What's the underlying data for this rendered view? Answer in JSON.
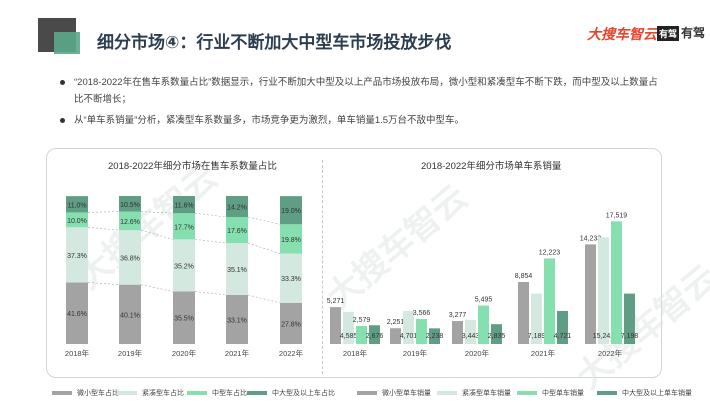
{
  "header": {
    "title": "细分市场④：行业不断加大中型车市场投放步伐",
    "logo_primary": "大搜车智云",
    "logo_secondary_box": "有驾",
    "logo_secondary_text": "有驾"
  },
  "bullets": [
    "“2018-2022年在售车系数量占比”数据显示，行业不断加大中型及以上产品市场投放布局，微小型和紧凑型车不断下跌，而中型及以上数量占比不断增长；",
    "从“单车系销量”分析，紧凑型车系数量多，市场竞争更为激烈，单车销量1.5万台不敌中型车。"
  ],
  "colors": {
    "micro": "#a3a3a3",
    "compact": "#d3e8de",
    "mid": "#86dfae",
    "large": "#5f9d84"
  },
  "chart_data": [
    {
      "type": "bar",
      "stacked": true,
      "title": "2018-2022年细分市场在售车系数量占比",
      "categories": [
        "2018年",
        "2019年",
        "2020年",
        "2021年",
        "2022年"
      ],
      "series": [
        {
          "name": "微小型车占比",
          "values": [
            41.6,
            40.1,
            35.5,
            33.1,
            27.8
          ]
        },
        {
          "name": "紧凑型车占比",
          "values": [
            37.3,
            36.8,
            35.2,
            35.1,
            33.3
          ]
        },
        {
          "name": "中型车占比",
          "values": [
            10.0,
            12.6,
            17.7,
            17.6,
            19.8
          ]
        },
        {
          "name": "中大型及以上车占比",
          "values": [
            11.0,
            10.5,
            11.6,
            14.2,
            19.0
          ]
        }
      ],
      "labels": {
        "micro": [
          "41.6%",
          "40.1%",
          "35.5%",
          "33.1%",
          "27.8%"
        ],
        "compact": [
          "37.3%",
          "36.8%",
          "35.2%",
          "35.1%",
          "33.3%"
        ],
        "mid": [
          "10.0%",
          "12.6%",
          "17.7%",
          "17.6%",
          "19.8%"
        ],
        "large": [
          "11.0%",
          "10.5%",
          "11.6%",
          "14.2%",
          "19.0%"
        ]
      },
      "ylim": [
        0,
        100
      ],
      "legend": "bottom"
    },
    {
      "type": "bar",
      "title": "2018-2022年细分市场单车系销量",
      "categories": [
        "2018年",
        "2019年",
        "2020年",
        "2021年",
        "2022年"
      ],
      "series": [
        {
          "name": "微小型单车销量",
          "values": [
            5271,
            2251,
            3277,
            8854,
            14233
          ]
        },
        {
          "name": "紧凑型单车销量",
          "values": [
            4585,
            4701,
            3443,
            7189,
            15242
          ]
        },
        {
          "name": "中型单车销量",
          "values": [
            2579,
            3566,
            5495,
            12223,
            17519
          ]
        },
        {
          "name": "中大型及以上单车销量",
          "values": [
            2676,
            2238,
            2835,
            4721,
            7198
          ]
        }
      ],
      "labels": {
        "micro": [
          "5,271",
          "2,251",
          "3,277",
          "8,854",
          "14,233"
        ],
        "compact": [
          "4,585",
          "4,701",
          "3,443",
          "7,189",
          "15,242"
        ],
        "mid": [
          "2,579",
          "3,566",
          "5,495",
          "12,223",
          "17,519"
        ],
        "large": [
          "2,676",
          "2,238",
          "2,835",
          "4,721",
          "7,198"
        ]
      },
      "ylim": [
        0,
        20000
      ],
      "legend": "bottom"
    }
  ],
  "watermark": "大搜车智云"
}
